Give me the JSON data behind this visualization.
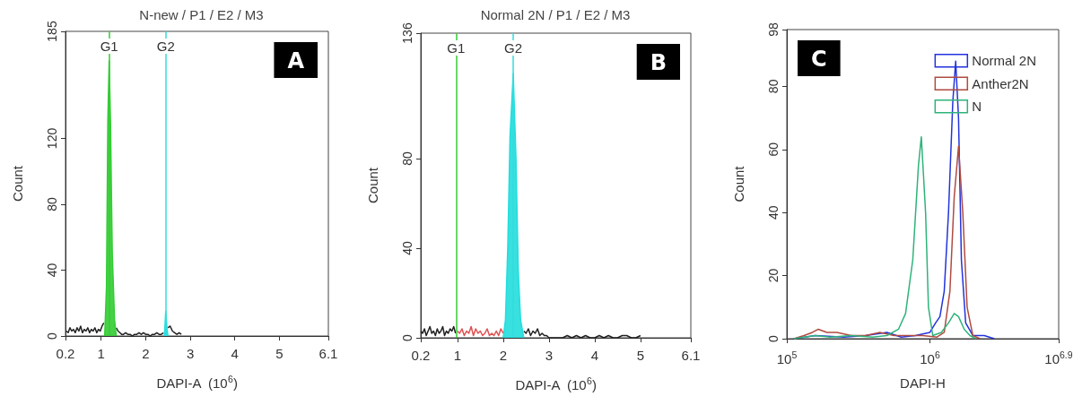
{
  "chart_data": [
    {
      "type": "line",
      "title": "N-new / P1 / E2 / M3",
      "xlabel": "DAPI-A  (10$^{6}$)",
      "ylabel": "Count",
      "annotations": [
        "A"
      ],
      "marker": "none",
      "xlim": [
        0.2,
        6.1
      ],
      "xticks": [
        0.2,
        1,
        2,
        3,
        4,
        5,
        6.1
      ],
      "ylim": [
        0,
        185
      ],
      "yticks": [
        0,
        40,
        80,
        120,
        185
      ],
      "ref_lines": [
        {
          "axis": "x",
          "value": 1.18,
          "label": "G1",
          "color": "#33cc33"
        },
        {
          "axis": "x",
          "value": 2.45,
          "label": "G2",
          "color": "#33dddd"
        }
      ],
      "series": [
        {
          "color": "#222222",
          "x": [
            0.22,
            0.26,
            0.3,
            0.34,
            0.38,
            0.42,
            0.46,
            0.5,
            0.54,
            0.58,
            0.62,
            0.66,
            0.7,
            0.74,
            0.78,
            0.82,
            0.86,
            0.9,
            0.94,
            0.98,
            1.02,
            1.06,
            1.08,
            1.34,
            1.38,
            1.42,
            1.46,
            1.5,
            1.55,
            1.6,
            1.65,
            1.7,
            1.75,
            1.8,
            1.85,
            1.9,
            1.95,
            2.0,
            2.05,
            2.1,
            2.15,
            2.2,
            2.25,
            2.3,
            2.35,
            2.4,
            2.42,
            2.5,
            2.55,
            2.6,
            2.65,
            2.7,
            2.75,
            2.8
          ],
          "values": [
            3,
            2,
            5,
            3,
            4,
            2,
            5,
            3,
            6,
            2,
            4,
            3,
            5,
            2,
            4,
            3,
            5,
            2,
            4,
            3,
            6,
            8,
            null,
            5,
            3,
            2,
            1,
            1,
            2,
            1,
            1,
            0,
            1,
            1,
            2,
            1,
            2,
            1,
            1,
            0,
            1,
            1,
            2,
            1,
            1,
            2,
            null,
            5,
            6,
            3,
            2,
            1,
            2,
            1
          ]
        },
        {
          "type": "area",
          "color": "#33cc33",
          "x": [
            1.08,
            1.12,
            1.15,
            1.18,
            1.21,
            1.25,
            1.3,
            1.34
          ],
          "values": [
            0,
            30,
            130,
            167,
            130,
            50,
            10,
            0
          ]
        },
        {
          "type": "area",
          "color": "#22dddd",
          "x": [
            2.42,
            2.45,
            2.48,
            2.5
          ],
          "values": [
            0,
            15,
            4,
            0
          ]
        }
      ]
    },
    {
      "type": "line",
      "title": "Normal 2N / P1 / E2 / M3",
      "xlabel": "DAPI-A  (10$^{6}$)",
      "ylabel": "Count",
      "annotations": [
        "B"
      ],
      "marker": "none",
      "xlim": [
        0.2,
        6.1
      ],
      "xticks": [
        0.2,
        1,
        2,
        3,
        4,
        5,
        6.1
      ],
      "ylim": [
        0,
        136
      ],
      "yticks": [
        0,
        40,
        80,
        136
      ],
      "ref_lines": [
        {
          "axis": "x",
          "value": 0.97,
          "label": "G1",
          "color": "#33cc33"
        },
        {
          "axis": "x",
          "value": 2.22,
          "label": "G2",
          "color": "#33dddd"
        }
      ],
      "series": [
        {
          "color": "#222222",
          "x": [
            0.2,
            0.24,
            0.28,
            0.32,
            0.36,
            0.4,
            0.44,
            0.48,
            0.52,
            0.56,
            0.6,
            0.64,
            0.68,
            0.72,
            0.76,
            0.8,
            0.84,
            0.88,
            0.92,
            0.96,
            1.0,
            2.45,
            2.5,
            2.55,
            2.6,
            2.65,
            2.7,
            2.75,
            2.8,
            2.85,
            2.9,
            2.95,
            3.0,
            3.1,
            3.2,
            3.3,
            3.4,
            3.5,
            3.6,
            3.7,
            3.8,
            3.9,
            4.0,
            4.1,
            4.2,
            4.3,
            4.4,
            4.5,
            4.6,
            4.7,
            4.8,
            4.9,
            5.0
          ],
          "values": [
            3,
            2,
            4,
            1,
            3,
            5,
            2,
            3,
            1,
            4,
            2,
            3,
            5,
            1,
            3,
            2,
            4,
            3,
            5,
            2,
            null,
            3,
            2,
            4,
            1,
            3,
            2,
            4,
            1,
            2,
            1,
            1,
            0,
            0,
            0,
            0,
            1,
            0,
            1,
            0,
            1,
            0,
            0,
            1,
            0,
            1,
            0,
            0,
            1,
            1,
            0,
            0,
            1
          ]
        },
        {
          "color": "#e05050",
          "x": [
            1.0,
            1.05,
            1.1,
            1.15,
            1.2,
            1.25,
            1.3,
            1.35,
            1.4,
            1.45,
            1.5,
            1.55,
            1.6,
            1.65,
            1.7,
            1.75,
            1.8,
            1.85,
            1.9,
            1.95,
            2.0
          ],
          "values": [
            3,
            2,
            4,
            1,
            3,
            2,
            5,
            1,
            4,
            2,
            3,
            1,
            2,
            4,
            1,
            2,
            1,
            3,
            1,
            4,
            2
          ]
        },
        {
          "type": "area",
          "color": "#22dddd",
          "x": [
            2.0,
            2.05,
            2.1,
            2.15,
            2.22,
            2.28,
            2.33,
            2.38,
            2.45
          ],
          "values": [
            0,
            8,
            40,
            90,
            118,
            80,
            30,
            8,
            0
          ]
        }
      ]
    },
    {
      "type": "line",
      "xlabel": "DAPI-H",
      "ylabel": "Count",
      "annotations": [
        "C"
      ],
      "marker": "none",
      "log": "x",
      "legend": "top right",
      "xlim": [
        100000,
        7943282
      ],
      "xticks": [
        {
          "value": 100000,
          "label": "10$^{5}$"
        },
        {
          "value": 1000000,
          "label": "10$^{6}$"
        },
        {
          "value": 7943282,
          "label": "10$^{6.9}$"
        }
      ],
      "ylim": [
        0,
        98
      ],
      "yticks": [
        0,
        20,
        40,
        60,
        80,
        98
      ],
      "series": [
        {
          "name": "Normal 2N",
          "color": "#2233dd",
          "x": [
            112000,
            158000,
            251000,
            355000,
            501000,
            631000,
            794000,
            1000000,
            1096000,
            1175000,
            1259000,
            1349000,
            1445000,
            1514000,
            1585000,
            1660000,
            1778000,
            1995000,
            2399000,
            2818000
          ],
          "values": [
            0,
            1,
            0.5,
            1,
            2,
            0.5,
            1,
            2,
            5,
            7,
            15,
            40,
            75,
            88,
            70,
            25,
            5,
            1,
            1,
            0
          ]
        },
        {
          "name": "Anther2N",
          "color": "#b04a40",
          "x": [
            112000,
            132000,
            151000,
            166000,
            191000,
            224000,
            282000,
            355000,
            447000,
            562000,
            708000,
            891000,
            1122000,
            1259000,
            1380000,
            1479000,
            1585000,
            1698000,
            1820000,
            1995000,
            2239000
          ],
          "values": [
            0,
            1,
            2,
            3,
            2,
            2,
            1,
            1,
            2,
            1,
            1,
            1,
            0.5,
            2,
            15,
            45,
            61,
            40,
            10,
            1,
            0
          ]
        },
        {
          "name": "N",
          "color": "#2eb37a",
          "x": [
            112000,
            158000,
            200000,
            282000,
            398000,
            501000,
            603000,
            676000,
            759000,
            832000,
            871000,
            933000,
            977000,
            1047000,
            1202000,
            1349000,
            1479000,
            1585000,
            1738000,
            1905000,
            2089000
          ],
          "values": [
            0,
            1,
            0.5,
            1,
            0.5,
            1,
            3,
            8,
            25,
            55,
            64,
            40,
            10,
            1,
            2,
            5,
            8,
            7,
            3,
            1,
            0
          ]
        }
      ]
    }
  ]
}
